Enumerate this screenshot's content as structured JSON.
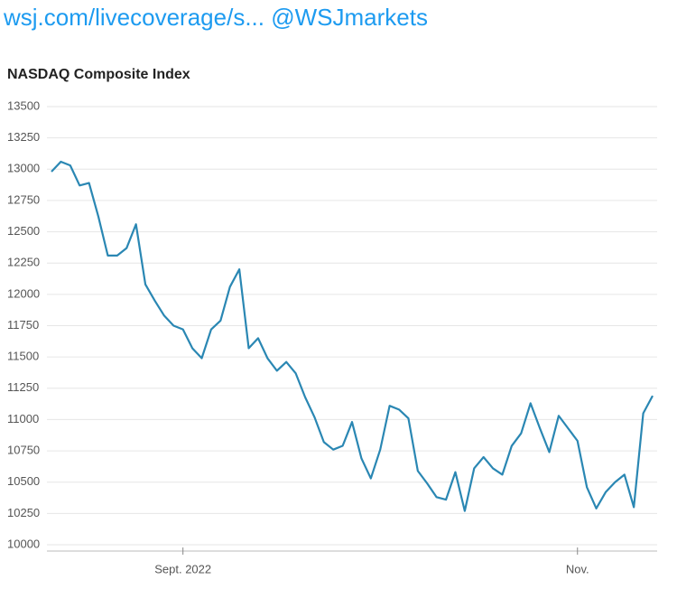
{
  "header": {
    "link": "wsj.com/livecoverage/s...",
    "handle": "@WSJmarkets"
  },
  "chart_data": {
    "type": "line",
    "title": "NASDAQ Composite Index",
    "categories": [
      null,
      null,
      null,
      null,
      null,
      null,
      null,
      null,
      null,
      null,
      null,
      null,
      null,
      null,
      "Sept. 2022",
      null,
      null,
      null,
      null,
      null,
      null,
      null,
      null,
      null,
      null,
      null,
      null,
      null,
      null,
      null,
      null,
      null,
      null,
      null,
      null,
      null,
      null,
      null,
      null,
      null,
      null,
      null,
      null,
      null,
      null,
      null,
      null,
      null,
      null,
      null,
      null,
      null,
      null,
      null,
      null,
      null,
      "Nov.",
      null,
      null,
      null,
      null,
      null,
      null,
      null,
      null
    ],
    "values": [
      12980,
      13060,
      13030,
      12870,
      12890,
      12620,
      12310,
      12310,
      12370,
      12560,
      12080,
      11950,
      11830,
      11750,
      11720,
      11570,
      11490,
      11720,
      11790,
      12060,
      12200,
      11570,
      11650,
      11490,
      11390,
      11460,
      11370,
      11180,
      11020,
      10820,
      10760,
      10790,
      10980,
      10690,
      10530,
      10760,
      11110,
      11080,
      11010,
      10590,
      10490,
      10380,
      10360,
      10580,
      10270,
      10610,
      10700,
      10610,
      10560,
      10790,
      10890,
      11130,
      10930,
      10740,
      11030,
      10930,
      10830,
      10460,
      10290,
      10420,
      10500,
      10560,
      10300,
      11050,
      11190
    ],
    "color": "#2a87b3",
    "ylim": [
      10000,
      13500
    ],
    "yticks": [
      10000,
      10250,
      10500,
      10750,
      11000,
      11250,
      11500,
      11750,
      12000,
      12250,
      12500,
      12750,
      13000,
      13250,
      13500
    ],
    "grid": true
  }
}
